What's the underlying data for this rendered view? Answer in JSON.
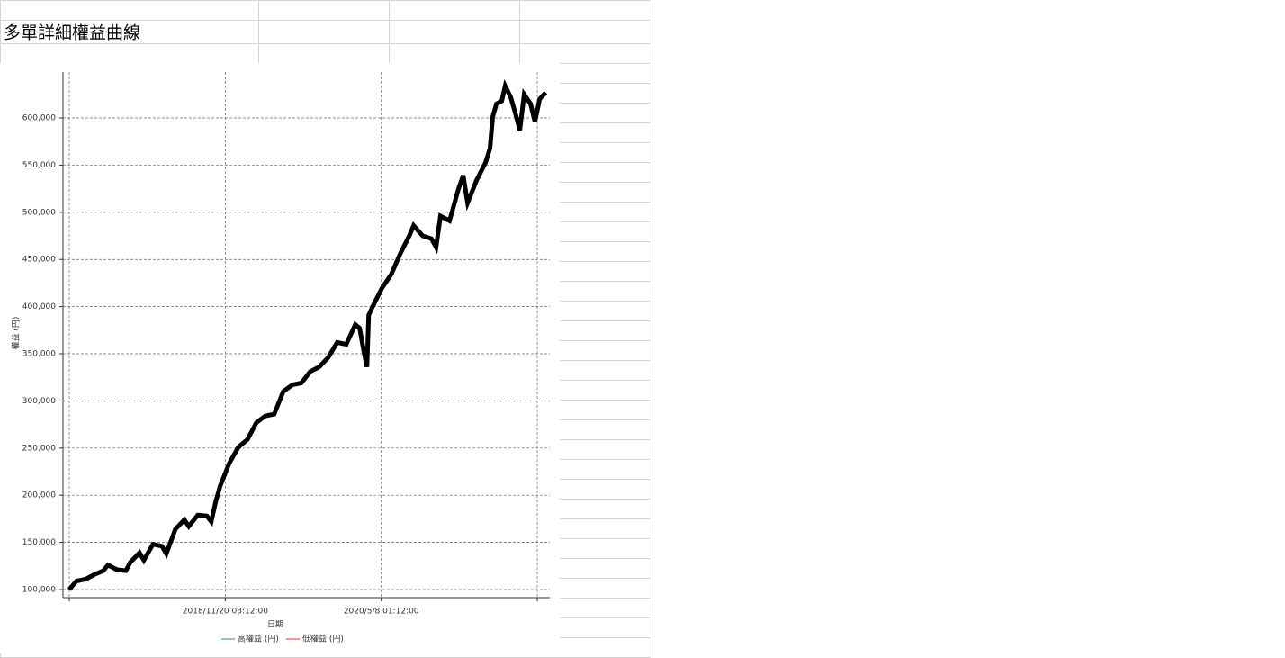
{
  "sheet_title": "多單詳細權益曲線",
  "chart_data": {
    "type": "line",
    "x_label": "日期",
    "y_label": "權益 (円)",
    "xlim": [
      42867.6,
      44537.1
    ],
    "xticks": [
      {
        "value": 42889.217,
        "label": null
      },
      {
        "value": 43424.133,
        "label": "2018/11/20 03:12:00"
      },
      {
        "value": 43959.05,
        "label": "2020/5/8 01:12:00"
      },
      {
        "value": 44493.967,
        "label": null
      }
    ],
    "ylim": [
      91400,
      648700
    ],
    "yticks": [
      {
        "value": 100000,
        "label": "100,000"
      },
      {
        "value": 150000,
        "label": "150,000"
      },
      {
        "value": 200000,
        "label": "200,000"
      },
      {
        "value": 250000,
        "label": "250,000"
      },
      {
        "value": 300000,
        "label": "300,000"
      },
      {
        "value": 350000,
        "label": "350,000"
      },
      {
        "value": 400000,
        "label": "400,000"
      },
      {
        "value": 450000,
        "label": "450,000"
      },
      {
        "value": 500000,
        "label": "500,000"
      },
      {
        "value": 550000,
        "label": "550,000"
      },
      {
        "value": 600000,
        "label": "600,000"
      }
    ],
    "grid": true,
    "line_color": "#000000",
    "legend": [
      {
        "name": "高權益 (円)",
        "color": "#3a9a3a"
      },
      {
        "name": "低權益 (円)",
        "color": "#e03030"
      }
    ],
    "x": [
      42889,
      42914,
      42945,
      42976,
      43006,
      43022,
      43053,
      43083,
      43099,
      43130,
      43145,
      43176,
      43207,
      43222,
      43253,
      43284,
      43299,
      43330,
      43361,
      43376,
      43392,
      43407,
      43438,
      43469,
      43500,
      43531,
      43561,
      43592,
      43623,
      43654,
      43685,
      43715,
      43746,
      43777,
      43808,
      43839,
      43870,
      43885,
      43900,
      43910,
      43916,
      43931,
      43962,
      43993,
      44024,
      44055,
      44070,
      44101,
      44131,
      44147,
      44162,
      44193,
      44224,
      44240,
      44255,
      44286,
      44317,
      44332,
      44341,
      44354,
      44372,
      44384,
      44403,
      44418,
      44434,
      44449,
      44471,
      44486,
      44502,
      44523
    ],
    "values": [
      100000,
      109000,
      111000,
      116000,
      120000,
      126000,
      121000,
      120000,
      129000,
      139000,
      131000,
      148000,
      146000,
      138000,
      164000,
      174000,
      167000,
      179000,
      178000,
      172000,
      194000,
      210000,
      234000,
      251000,
      259000,
      277000,
      284000,
      286000,
      310000,
      317000,
      319000,
      331000,
      336000,
      346000,
      362000,
      360000,
      381000,
      377000,
      351000,
      336000,
      391000,
      401000,
      420000,
      434000,
      456000,
      475000,
      486000,
      475000,
      472000,
      463000,
      496000,
      491000,
      525000,
      539000,
      510000,
      534000,
      553000,
      568000,
      601000,
      615000,
      618000,
      634000,
      622000,
      606000,
      587000,
      625000,
      615000,
      596000,
      620000,
      627000
    ]
  }
}
